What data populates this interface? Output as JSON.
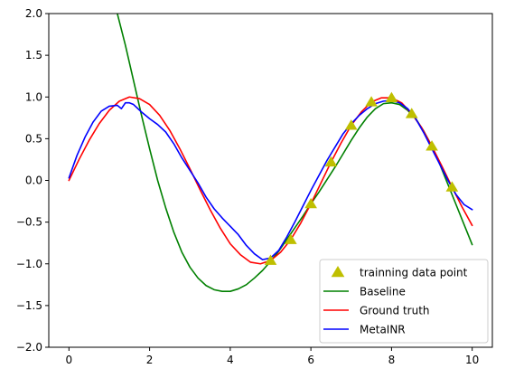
{
  "chart_data": {
    "type": "line",
    "title": "",
    "xlabel": "",
    "ylabel": "",
    "xlim": [
      -0.5,
      10.5
    ],
    "ylim": [
      -2.0,
      2.0
    ],
    "xticks": [
      0,
      2,
      4,
      6,
      8,
      10
    ],
    "yticks": [
      -2.0,
      -1.5,
      -1.0,
      -0.5,
      0.0,
      0.5,
      1.0,
      1.5,
      2.0
    ],
    "xtick_labels": [
      "0",
      "2",
      "4",
      "6",
      "8",
      "10"
    ],
    "ytick_labels": [
      "−2.0",
      "−1.5",
      "−1.0",
      "−0.5",
      "0.0",
      "0.5",
      "1.0",
      "1.5",
      "2.0"
    ],
    "grid": false,
    "legend_position": "lower-right",
    "series": [
      {
        "name": "trainning data point",
        "kind": "scatter",
        "marker": "triangle",
        "color": "#bfbf00",
        "x": [
          5.0,
          5.5,
          6.0,
          6.5,
          7.0,
          7.5,
          8.0,
          8.5,
          9.0,
          9.5
        ],
        "y": [
          -0.96,
          -0.71,
          -0.28,
          0.22,
          0.66,
          0.94,
          0.99,
          0.8,
          0.41,
          -0.08
        ]
      },
      {
        "name": "Baseline",
        "kind": "line",
        "color": "#008000",
        "x": [
          1.2,
          1.4,
          1.6,
          1.8,
          2.0,
          2.2,
          2.4,
          2.6,
          2.8,
          3.0,
          3.2,
          3.4,
          3.6,
          3.8,
          4.0,
          4.2,
          4.4,
          4.6,
          4.8,
          5.0,
          5.2,
          5.4,
          5.6,
          5.8,
          6.0,
          6.2,
          6.4,
          6.6,
          6.8,
          7.0,
          7.2,
          7.4,
          7.6,
          7.8,
          8.0,
          8.2,
          8.4,
          8.6,
          8.8,
          9.0,
          9.2,
          9.4,
          9.6,
          9.8,
          10.0
        ],
        "y": [
          2.0,
          1.62,
          1.2,
          0.78,
          0.38,
          0.0,
          -0.33,
          -0.62,
          -0.86,
          -1.04,
          -1.17,
          -1.26,
          -1.31,
          -1.33,
          -1.33,
          -1.3,
          -1.25,
          -1.17,
          -1.08,
          -0.97,
          -0.85,
          -0.71,
          -0.57,
          -0.43,
          -0.28,
          -0.14,
          0.01,
          0.16,
          0.32,
          0.48,
          0.63,
          0.76,
          0.86,
          0.92,
          0.93,
          0.91,
          0.84,
          0.74,
          0.59,
          0.41,
          0.19,
          -0.05,
          -0.29,
          -0.53,
          -0.77
        ]
      },
      {
        "name": "Ground truth",
        "kind": "line",
        "color": "#ff0000",
        "x": [
          0.0,
          0.25,
          0.5,
          0.75,
          1.0,
          1.25,
          1.5,
          1.75,
          2.0,
          2.25,
          2.5,
          2.75,
          3.0,
          3.25,
          3.5,
          3.75,
          4.0,
          4.25,
          4.5,
          4.75,
          5.0,
          5.25,
          5.5,
          5.75,
          6.0,
          6.25,
          6.5,
          6.75,
          7.0,
          7.25,
          7.5,
          7.75,
          8.0,
          8.25,
          8.5,
          8.75,
          9.0,
          9.25,
          9.5,
          9.75,
          10.0
        ],
        "y": [
          0.0,
          0.25,
          0.48,
          0.68,
          0.84,
          0.95,
          1.0,
          0.98,
          0.91,
          0.78,
          0.6,
          0.38,
          0.14,
          -0.11,
          -0.35,
          -0.57,
          -0.76,
          -0.89,
          -0.98,
          -1.0,
          -0.96,
          -0.86,
          -0.71,
          -0.51,
          -0.28,
          -0.03,
          0.22,
          0.45,
          0.66,
          0.82,
          0.94,
          0.99,
          0.99,
          0.93,
          0.8,
          0.63,
          0.41,
          0.17,
          -0.08,
          -0.32,
          -0.54
        ]
      },
      {
        "name": "MetaINR",
        "kind": "line",
        "color": "#0000ff",
        "x": [
          0.0,
          0.2,
          0.4,
          0.6,
          0.8,
          1.0,
          1.2,
          1.3,
          1.4,
          1.5,
          1.6,
          1.8,
          2.0,
          2.2,
          2.4,
          2.6,
          2.8,
          3.0,
          3.2,
          3.4,
          3.6,
          3.8,
          4.0,
          4.2,
          4.4,
          4.6,
          4.8,
          5.0,
          5.2,
          5.4,
          5.6,
          5.8,
          6.0,
          6.2,
          6.4,
          6.6,
          6.8,
          7.0,
          7.2,
          7.4,
          7.6,
          7.8,
          8.0,
          8.2,
          8.4,
          8.6,
          8.8,
          9.0,
          9.2,
          9.4,
          9.6,
          9.8,
          10.0
        ],
        "y": [
          0.03,
          0.3,
          0.52,
          0.7,
          0.83,
          0.89,
          0.9,
          0.86,
          0.93,
          0.93,
          0.91,
          0.82,
          0.74,
          0.67,
          0.58,
          0.44,
          0.27,
          0.12,
          -0.03,
          -0.2,
          -0.34,
          -0.45,
          -0.55,
          -0.65,
          -0.78,
          -0.88,
          -0.95,
          -0.93,
          -0.84,
          -0.68,
          -0.5,
          -0.31,
          -0.12,
          0.06,
          0.24,
          0.4,
          0.56,
          0.68,
          0.78,
          0.86,
          0.92,
          0.95,
          0.96,
          0.93,
          0.86,
          0.74,
          0.57,
          0.38,
          0.19,
          0.0,
          -0.17,
          -0.29,
          -0.35
        ]
      }
    ]
  }
}
